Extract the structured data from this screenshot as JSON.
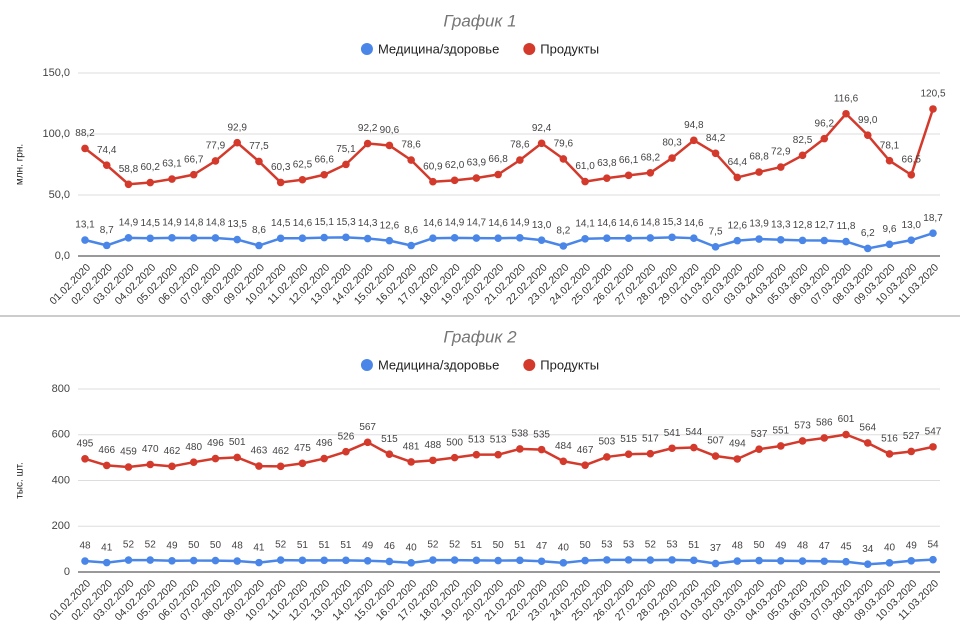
{
  "chart_data": [
    {
      "type": "line",
      "title": "График 1",
      "y_label": "млн. грн.",
      "categories": [
        "01.02.2020",
        "02.02.2020",
        "03.02.2020",
        "04.02.2020",
        "05.02.2020",
        "06.02.2020",
        "07.02.2020",
        "08.02.2020",
        "09.02.2020",
        "10.02.2020",
        "11.02.2020",
        "12.02.2020",
        "13.02.2020",
        "14.02.2020",
        "15.02.2020",
        "16.02.2020",
        "17.02.2020",
        "18.02.2020",
        "19.02.2020",
        "20.02.2020",
        "21.02.2020",
        "22.02.2020",
        "23.02.2020",
        "24.02.2020",
        "25.02.2020",
        "26.02.2020",
        "27.02.2020",
        "28.02.2020",
        "29.02.2020",
        "01.03.2020",
        "02.03.2020",
        "03.03.2020",
        "04.03.2020",
        "05.03.2020",
        "06.03.2020",
        "07.03.2020",
        "08.03.2020",
        "09.03.2020",
        "10.03.2020",
        "11.03.2020"
      ],
      "ylim": [
        0,
        150
      ],
      "yticks": [
        {
          "value": 0,
          "label": "0,0"
        },
        {
          "value": 50,
          "label": "50,0"
        },
        {
          "value": 100,
          "label": "100,0"
        },
        {
          "value": 150,
          "label": "150,0"
        }
      ],
      "grid": true,
      "series": [
        {
          "name": "Медицина/здоровье",
          "color": "#4a86e8",
          "values": [
            13.1,
            8.7,
            14.9,
            14.5,
            14.9,
            14.8,
            14.8,
            13.5,
            8.6,
            14.5,
            14.6,
            15.1,
            15.3,
            14.3,
            12.6,
            8.6,
            14.6,
            14.9,
            14.7,
            14.6,
            14.9,
            13.0,
            8.2,
            14.1,
            14.6,
            14.6,
            14.8,
            15.3,
            14.6,
            7.5,
            12.6,
            13.9,
            13.3,
            12.8,
            12.7,
            11.8,
            6.2,
            9.6,
            13.0,
            18.7
          ],
          "value_labels": [
            "13,1",
            "8,7",
            "14,9",
            "14,5",
            "14,9",
            "14,8",
            "14,8",
            "13,5",
            "8,6",
            "14,5",
            "14,6",
            "15,1",
            "15,3",
            "14,3",
            "12,6",
            "8,6",
            "14,6",
            "14,9",
            "14,7",
            "14,6",
            "14,9",
            "13,0",
            "8,2",
            "14,1",
            "14,6",
            "14,6",
            "14,8",
            "15,3",
            "14,6",
            "7,5",
            "12,6",
            "13,9",
            "13,3",
            "12,8",
            "12,7",
            "11,8",
            "6,2",
            "9,6",
            "13,0",
            "18,7"
          ]
        },
        {
          "name": "Продукты",
          "color": "#d33a2c",
          "values": [
            88.2,
            74.4,
            58.8,
            60.2,
            63.1,
            66.7,
            77.9,
            92.9,
            77.5,
            60.3,
            62.5,
            66.6,
            75.1,
            92.2,
            90.6,
            78.6,
            60.9,
            62.0,
            63.9,
            66.8,
            78.6,
            92.4,
            79.6,
            61.0,
            63.8,
            66.1,
            68.2,
            80.3,
            94.8,
            84.2,
            64.4,
            68.8,
            72.9,
            82.5,
            96.2,
            116.6,
            99.0,
            78.1,
            66.5,
            120.5
          ],
          "value_labels": [
            "88,2",
            "74,4",
            "58,8",
            "60,2",
            "63,1",
            "66,7",
            "77,9",
            "92,9",
            "77,5",
            "60,3",
            "62,5",
            "66,6",
            "75,1",
            "92,2",
            "90,6",
            "78,6",
            "60,9",
            "62,0",
            "63,9",
            "66,8",
            "78,6",
            "92,4",
            "79,6",
            "61,0",
            "63,8",
            "66,1",
            "68,2",
            "80,3",
            "94,8",
            "84,2",
            "64,4",
            "68,8",
            "72,9",
            "82,5",
            "96,2",
            "116,6",
            "99,0",
            "78,1",
            "66,5",
            "120,5"
          ]
        }
      ]
    },
    {
      "type": "line",
      "title": "График 2",
      "y_label": "тыс. шт.",
      "categories": [
        "01.02.2020",
        "02.02.2020",
        "03.02.2020",
        "04.02.2020",
        "05.02.2020",
        "06.02.2020",
        "07.02.2020",
        "08.02.2020",
        "09.02.2020",
        "10.02.2020",
        "11.02.2020",
        "12.02.2020",
        "13.02.2020",
        "14.02.2020",
        "15.02.2020",
        "16.02.2020",
        "17.02.2020",
        "18.02.2020",
        "19.02.2020",
        "20.02.2020",
        "21.02.2020",
        "22.02.2020",
        "23.02.2020",
        "24.02.2020",
        "25.02.2020",
        "26.02.2020",
        "27.02.2020",
        "28.02.2020",
        "29.02.2020",
        "01.03.2020",
        "02.03.2020",
        "03.03.2020",
        "04.03.2020",
        "05.03.2020",
        "06.03.2020",
        "07.03.2020",
        "08.03.2020",
        "09.03.2020",
        "10.03.2020",
        "11.03.2020"
      ],
      "ylim": [
        0,
        800
      ],
      "yticks": [
        0,
        200,
        400,
        600,
        800
      ],
      "grid": true,
      "series": [
        {
          "name": "Медицина/здоровье",
          "color": "#4a86e8",
          "values": [
            48,
            41,
            52,
            52,
            49,
            50,
            50,
            48,
            41,
            52,
            51,
            51,
            51,
            49,
            46,
            40,
            52,
            52,
            51,
            50,
            51,
            47,
            40,
            50,
            53,
            53,
            52,
            53,
            51,
            37,
            48,
            50,
            49,
            48,
            47,
            45,
            34,
            40,
            49,
            54
          ]
        },
        {
          "name": "Продукты",
          "color": "#d33a2c",
          "values": [
            495,
            466,
            459,
            470,
            462,
            480,
            496,
            501,
            463,
            462,
            475,
            496,
            526,
            567,
            515,
            481,
            488,
            500,
            513,
            513,
            538,
            535,
            484,
            467,
            503,
            515,
            517,
            541,
            544,
            507,
            494,
            537,
            551,
            573,
            586,
            601,
            564,
            516,
            527,
            547
          ]
        }
      ]
    }
  ]
}
